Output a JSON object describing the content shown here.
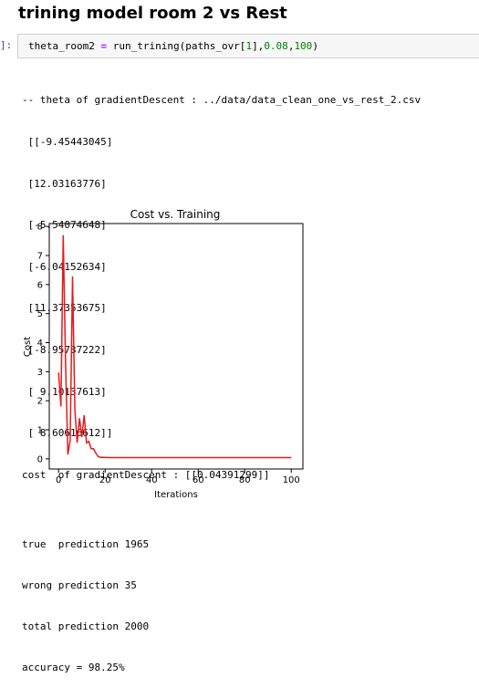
{
  "heading": "trining model room 2 vs Rest",
  "cell": {
    "prompt": "]:",
    "code_var": "theta_room2",
    "code_eq": "=",
    "code_fn": "run_trining(paths_ovr[",
    "code_idx": "1",
    "code_mid": "],",
    "code_lr": "0.08",
    "code_comma": ",",
    "code_iter": "100",
    "code_end": ")"
  },
  "output_lines": [
    "-- theta of gradientDescent : ../data/data_clean_one_vs_rest_2.csv",
    " [[-9.45443045]",
    " [12.03163776]",
    " [-5.54074648]",
    " [-6.04152634]",
    " [11.37353675]",
    " [-8.95737222]",
    " [ 9.10137613]",
    " [ 8.60616612]]",
    "cost  of gradientDescent : [[0.04391299]]"
  ],
  "chart_data": {
    "type": "line",
    "title": "Cost vs. Training",
    "xlabel": "Iterations",
    "ylabel": "Cost",
    "xlim": [
      -4,
      105
    ],
    "ylim": [
      -0.35,
      8.1
    ],
    "xticks": [
      0,
      20,
      40,
      60,
      80,
      100
    ],
    "yticks": [
      0,
      1,
      2,
      3,
      4,
      5,
      6,
      7,
      8
    ],
    "color": "#e41a1c",
    "series": [
      {
        "x": [
          0,
          1,
          2,
          3,
          4,
          5,
          6,
          7,
          8,
          9,
          10,
          11,
          12,
          13,
          14,
          15,
          16,
          17,
          18,
          19,
          20,
          21,
          22,
          23,
          24,
          25,
          30,
          40,
          50,
          60,
          70,
          80,
          90,
          100
        ],
        "y": [
          2.97,
          1.8,
          7.7,
          3.3,
          0.15,
          0.65,
          6.28,
          1.7,
          0.55,
          1.4,
          0.75,
          1.5,
          0.55,
          0.6,
          0.35,
          0.35,
          0.2,
          0.08,
          0.05,
          0.05,
          0.045,
          0.045,
          0.044,
          0.044,
          0.044,
          0.044,
          0.044,
          0.044,
          0.044,
          0.044,
          0.044,
          0.044,
          0.044,
          0.044
        ]
      }
    ]
  },
  "stats_lines": [
    "true  prediction 1965",
    "wrong prediction 35",
    "total prediction 2000",
    "accuracy = 98.25%"
  ]
}
